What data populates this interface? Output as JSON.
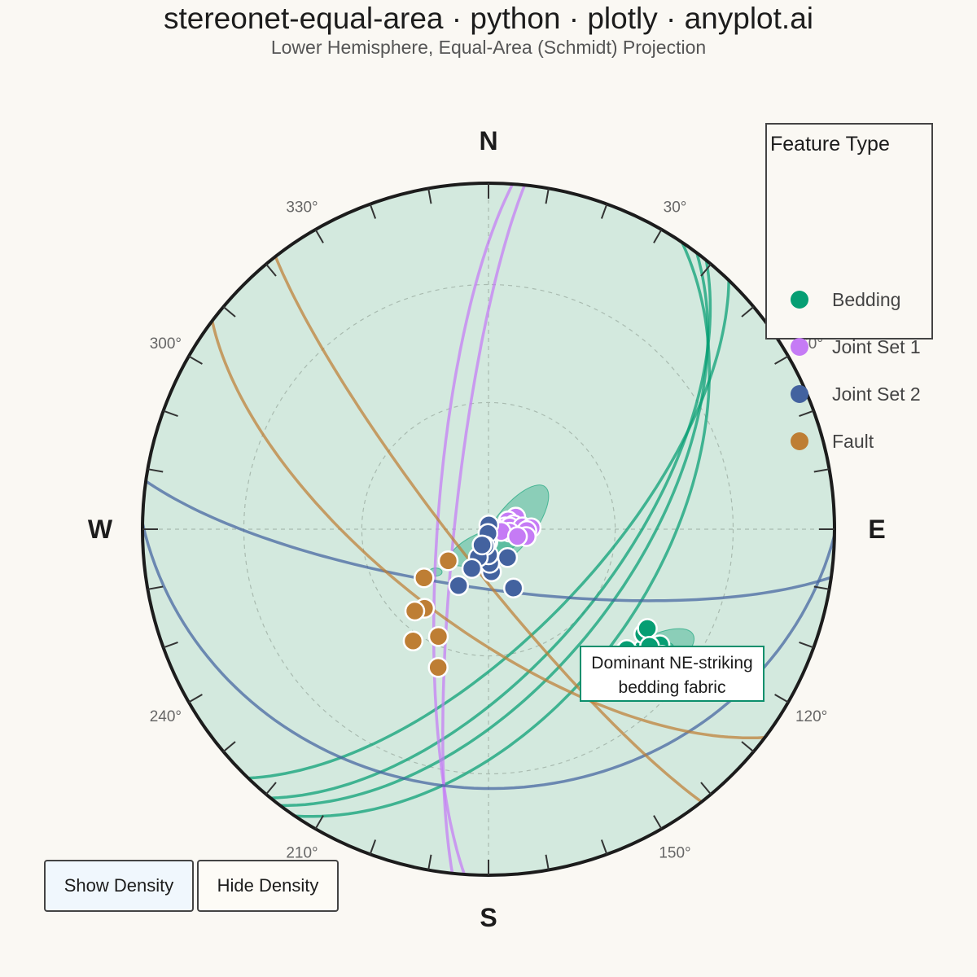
{
  "title": "stereonet-equal-area · python · plotly · anyplot.ai",
  "subtitle": "Lower Hemisphere, Equal-Area (Schmidt) Projection",
  "colors": {
    "background": "#FAF8F3",
    "net_fill": "#D3E9DE",
    "primitive": "#1c1c1c",
    "bedding": "#069E73",
    "joint1": "#C57BF5",
    "joint2": "#43629F",
    "fault": "#BE7E34",
    "grid": "#A9BBB0"
  },
  "legend": {
    "title": "Feature Type",
    "items": [
      {
        "label": "Bedding",
        "color": "#069E73"
      },
      {
        "label": "Joint Set 1",
        "color": "#C57BF5"
      },
      {
        "label": "Joint Set 2",
        "color": "#43629F"
      },
      {
        "label": "Fault",
        "color": "#BE7E34"
      }
    ]
  },
  "buttons": {
    "show_density": "Show Density",
    "hide_density": "Hide Density"
  },
  "annotation": {
    "line1": "Dominant NE-striking",
    "line2": "bedding fabric"
  },
  "chart_data": {
    "type": "scatter",
    "projection": "equal-area (Schmidt), lower hemisphere",
    "cardinals": [
      {
        "label": "N",
        "azimuth": 0
      },
      {
        "label": "E",
        "azimuth": 90
      },
      {
        "label": "S",
        "azimuth": 180
      },
      {
        "label": "W",
        "azimuth": 270
      }
    ],
    "azimuth_labels": [
      {
        "label": "30°",
        "azimuth": 30
      },
      {
        "label": "60°",
        "azimuth": 60
      },
      {
        "label": "120°",
        "azimuth": 120
      },
      {
        "label": "150°",
        "azimuth": 150
      },
      {
        "label": "210°",
        "azimuth": 210
      },
      {
        "label": "240°",
        "azimuth": 240
      },
      {
        "label": "300°",
        "azimuth": 300
      },
      {
        "label": "330°",
        "azimuth": 330
      }
    ],
    "tick_interval_deg": 10,
    "dip_gridlines_deg": [
      30,
      60
    ],
    "series": [
      {
        "name": "Bedding",
        "color": "#069E73",
        "poles": [
          [
            124,
            40
          ],
          [
            128,
            43
          ],
          [
            126,
            38
          ],
          [
            132,
            46
          ],
          [
            124,
            45
          ],
          [
            128,
            34
          ],
          [
            135,
            40
          ],
          [
            133,
            34
          ],
          [
            135,
            38
          ],
          [
            130,
            41
          ],
          [
            122,
            45
          ],
          [
            126,
            42
          ],
          [
            131,
            46
          ],
          [
            133,
            40
          ],
          [
            140,
            50
          ],
          [
            128,
            38
          ]
        ],
        "great_circles": [
          [
            34,
            50
          ],
          [
            37,
            56
          ],
          [
            39,
            60
          ],
          [
            44,
            65
          ]
        ]
      },
      {
        "name": "Joint Set 1",
        "color": "#C57BF5",
        "poles": [
          [
            66,
            83
          ],
          [
            67,
            85
          ],
          [
            80,
            84
          ],
          [
            82,
            86
          ],
          [
            84,
            85
          ],
          [
            86,
            82
          ],
          [
            88,
            80
          ],
          [
            92,
            81
          ],
          [
            94,
            88
          ],
          [
            98,
            85
          ],
          [
            100,
            87
          ],
          [
            101,
            81
          ],
          [
            104,
            83
          ]
        ],
        "great_circles": [
          [
            184,
            78
          ],
          [
            186,
            82
          ]
        ]
      },
      {
        "name": "Joint Set 2",
        "color": "#43629F",
        "poles": [
          [
            146,
            82
          ],
          [
            157,
            75
          ],
          [
            176,
            80
          ],
          [
            178,
            82
          ],
          [
            180,
            84
          ],
          [
            183,
            87
          ],
          [
            184,
            91
          ],
          [
            188,
            87
          ],
          [
            188,
            89
          ],
          [
            192,
            86
          ],
          [
            200,
            83
          ],
          [
            202,
            86
          ],
          [
            203,
            80
          ],
          [
            208,
            75
          ]
        ],
        "great_circles": [
          [
            91,
            26
          ],
          [
            98,
            76
          ]
        ]
      },
      {
        "name": "Fault",
        "color": "#BE7E34",
        "poles": [
          [
            200,
            55
          ],
          [
            205,
            62
          ],
          [
            214,
            58
          ],
          [
            219,
            66
          ],
          [
            222,
            64
          ],
          [
            232,
            78
          ],
          [
            233,
            71
          ]
        ],
        "great_circles": [
          [
            127,
            67
          ],
          [
            142,
            82
          ]
        ]
      }
    ],
    "density_contours": [
      {
        "center_azimuth": 129,
        "center_dip": 40,
        "extent": [
          62,
          25
        ],
        "rotation_deg": -30,
        "levels": [
          1,
          0.55,
          0.25
        ]
      },
      {
        "center_azimuth": 84,
        "center_dip": 84,
        "extent": [
          24,
          62
        ],
        "rotation_deg": 38,
        "levels": [
          1
        ]
      },
      {
        "center_azimuth": 188,
        "center_dip": 86,
        "extent": [
          48,
          18
        ],
        "rotation_deg": -22,
        "levels": [
          1
        ]
      },
      {
        "center_azimuth": 231,
        "center_dip": 74,
        "extent": [
          8,
          5
        ],
        "rotation_deg": 0,
        "levels": [
          1
        ]
      }
    ]
  }
}
